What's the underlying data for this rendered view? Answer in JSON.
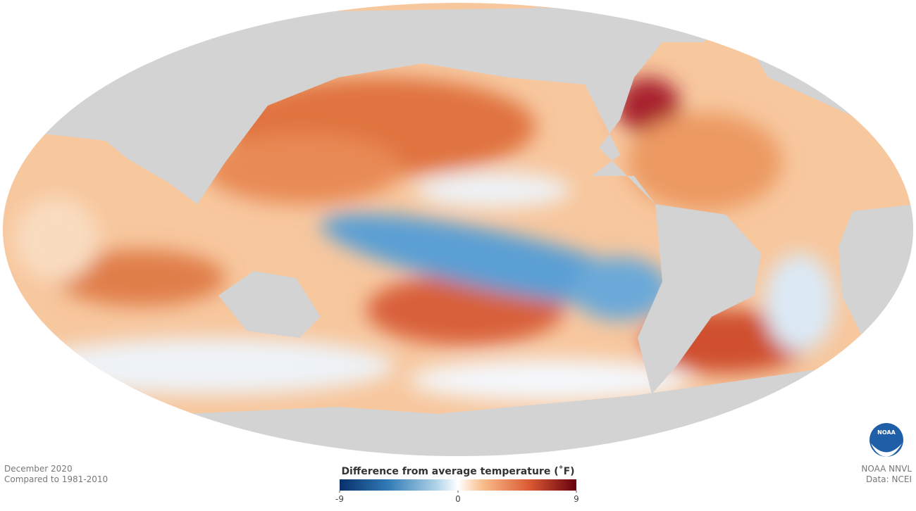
{
  "footer_left": {
    "date": "December 2020",
    "baseline": "Compared to 1981-2010"
  },
  "colorbar": {
    "title": "Difference from average temperature (˚F)",
    "lim": [
      -9,
      9
    ],
    "ticks": [
      -9,
      0,
      9
    ]
  },
  "credits": {
    "logo": "NOAA",
    "source": "NOAA NNVL",
    "data": "Data: NCEI"
  }
}
